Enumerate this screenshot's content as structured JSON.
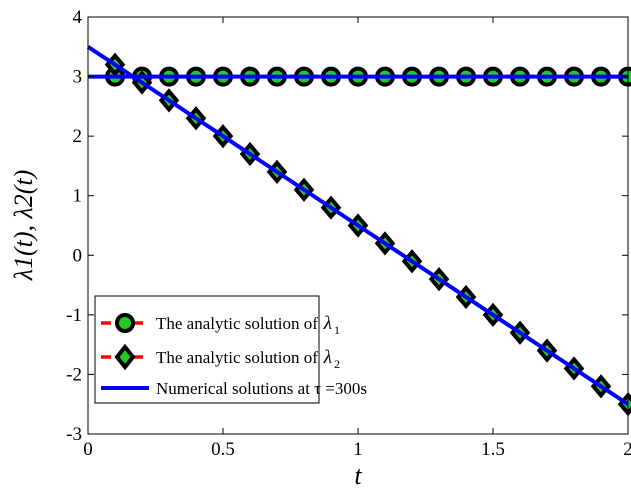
{
  "chart_data": {
    "type": "line",
    "xlabel": "t",
    "ylabel": "λ1(t), λ2(t)",
    "xlim": [
      0,
      2
    ],
    "ylim": [
      -3,
      4
    ],
    "x_ticks": [
      "0",
      "0.5",
      "1",
      "1.5",
      "2"
    ],
    "y_ticks": [
      "-3",
      "-2",
      "-1",
      "0",
      "1",
      "2",
      "3",
      "4"
    ],
    "legend_position": "bottom-left",
    "series": [
      {
        "name": "The analytic solution of λ1",
        "style": "dashed-circle-markers",
        "line_color": "#ff0000",
        "marker_face": "#22cc22",
        "marker_edge": "#000000",
        "x": [
          0.1,
          0.2,
          0.3,
          0.4,
          0.5,
          0.6,
          0.7,
          0.8,
          0.9,
          1.0,
          1.1,
          1.2,
          1.3,
          1.4,
          1.5,
          1.6,
          1.7,
          1.8,
          1.9,
          2.0
        ],
        "y": [
          3,
          3,
          3,
          3,
          3,
          3,
          3,
          3,
          3,
          3,
          3,
          3,
          3,
          3,
          3,
          3,
          3,
          3,
          3,
          3
        ]
      },
      {
        "name": "The analytic solution of λ2",
        "style": "dashed-diamond-markers",
        "line_color": "#ff0000",
        "marker_face": "#22cc22",
        "marker_edge": "#000000",
        "x": [
          0.1,
          0.2,
          0.3,
          0.4,
          0.5,
          0.6,
          0.7,
          0.8,
          0.9,
          1.0,
          1.1,
          1.2,
          1.3,
          1.4,
          1.5,
          1.6,
          1.7,
          1.8,
          1.9,
          2.0
        ],
        "y": [
          3.2,
          2.9,
          2.6,
          2.3,
          2.0,
          1.7,
          1.4,
          1.1,
          0.8,
          0.5,
          0.2,
          -0.1,
          -0.4,
          -0.7,
          -1.0,
          -1.3,
          -1.6,
          -1.9,
          -2.2,
          -2.5
        ]
      },
      {
        "name": "Numerical solutions at τ =300s",
        "style": "solid",
        "line_color": "#0000ff",
        "lines": [
          {
            "x": [
              0,
              2
            ],
            "y": [
              3,
              3
            ]
          },
          {
            "x": [
              0,
              2
            ],
            "y": [
              3.5,
              -2.5
            ]
          }
        ]
      }
    ]
  },
  "legend": {
    "entry1_text": "The analytic solution of",
    "entry1_symbol": "λ",
    "entry1_sub": "1",
    "entry2_text": "The analytic solution of",
    "entry2_symbol": "λ",
    "entry2_sub": "2",
    "entry3_text": "Numerical solutions at τ =300s"
  }
}
